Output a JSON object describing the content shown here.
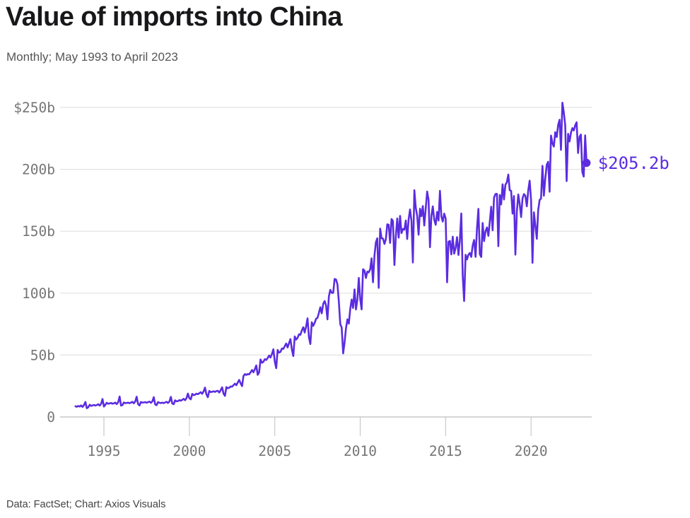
{
  "header": {
    "title": "Value of imports into China",
    "subtitle": "Monthly; May 1993 to April 2023"
  },
  "footer": {
    "credit": "Data: FactSet; Chart: Axios Visuals"
  },
  "chart_data": {
    "type": "line",
    "title": "Value of imports into China",
    "subtitle": "Monthly; May 1993 to April 2023",
    "unit": "USD billions per month",
    "x_start": "1993-05",
    "x_end": "2023-04",
    "ylim": [
      0,
      250
    ],
    "grid": "horizontal",
    "legend": "none",
    "line_color": "#5b2ce0",
    "grid_color": "#e2e2e2",
    "axis_color": "#c9c9c9",
    "tick_text_color": "#767676",
    "end_label": "$205.2b",
    "end_value": 205.2,
    "y_ticks": [
      {
        "v": 250,
        "label": "$250b"
      },
      {
        "v": 200,
        "label": "200b"
      },
      {
        "v": 150,
        "label": "150b"
      },
      {
        "v": 100,
        "label": "100b"
      },
      {
        "v": 50,
        "label": "50b"
      },
      {
        "v": 0,
        "label": "0"
      }
    ],
    "x_ticks": [
      {
        "v": 1995,
        "label": "1995"
      },
      {
        "v": 2000,
        "label": "2000"
      },
      {
        "v": 2005,
        "label": "2005"
      },
      {
        "v": 2010,
        "label": "2010"
      },
      {
        "v": 2015,
        "label": "2015"
      },
      {
        "v": 2020,
        "label": "2020"
      }
    ],
    "series": [
      {
        "name": "Value of imports into China",
        "first_year": 1993,
        "first_year_start_month": 5,
        "monthly_by_year": {
          "1993": [
            8.6,
            8.2,
            8.9,
            8.4,
            9.3,
            8.1,
            9.6,
            12.1
          ],
          "1994": [
            7.0,
            7.8,
            9.8,
            8.9,
            9.3,
            9.7,
            9.2,
            9.6,
            10.3,
            9.2,
            10.6,
            14.5
          ],
          "1995": [
            8.4,
            9.8,
            11.4,
            10.7,
            10.9,
            11.3,
            10.7,
            11.0,
            11.6,
            10.4,
            11.8,
            16.5
          ],
          "1996": [
            9.2,
            9.6,
            11.7,
            11.2,
            11.3,
            11.6,
            11.1,
            11.6,
            12.2,
            11.0,
            12.5,
            16.3
          ],
          "1997": [
            10.4,
            9.3,
            12.1,
            11.6,
            11.7,
            12.0,
            11.5,
            12.0,
            12.4,
            11.4,
            12.6,
            16.0
          ],
          "1998": [
            10.1,
            9.5,
            12.0,
            11.4,
            11.2,
            11.6,
            11.2,
            11.7,
            12.2,
            11.3,
            12.4,
            16.2
          ],
          "1999": [
            10.8,
            10.3,
            13.4,
            12.6,
            12.8,
            13.6,
            13.1,
            13.8,
            14.6,
            13.5,
            15.1,
            18.9
          ],
          "2000": [
            15.2,
            14.2,
            18.6,
            17.6,
            18.0,
            18.8,
            18.4,
            19.2,
            20.0,
            18.7,
            20.6,
            23.7
          ],
          "2001": [
            18.2,
            15.9,
            21.0,
            20.1,
            20.3,
            20.7,
            20.2,
            20.9,
            21.1,
            19.7,
            21.5,
            24.0
          ],
          "2002": [
            18.8,
            17.0,
            24.1,
            23.2,
            23.6,
            24.6,
            24.5,
            25.7,
            26.9,
            25.6,
            27.8,
            29.9
          ],
          "2003": [
            27.2,
            24.9,
            33.1,
            34.6,
            33.9,
            34.7,
            34.4,
            36.0,
            37.9,
            36.1,
            38.6,
            41.6
          ],
          "2004": [
            34.0,
            35.9,
            46.4,
            43.8,
            44.6,
            46.7,
            46.0,
            47.6,
            49.6,
            48.0,
            50.9,
            54.7
          ],
          "2005": [
            44.7,
            39.4,
            54.1,
            52.0,
            52.5,
            55.3,
            55.0,
            57.2,
            59.3,
            56.1,
            59.6,
            62.9
          ],
          "2006": [
            54.6,
            49.2,
            65.0,
            62.5,
            63.8,
            66.7,
            66.4,
            69.8,
            72.5,
            68.2,
            73.2,
            79.6
          ],
          "2007": [
            64.3,
            58.9,
            76.5,
            73.6,
            76.0,
            79.3,
            80.1,
            84.1,
            88.6,
            83.7,
            91.3,
            93.6
          ],
          "2008": [
            90.2,
            78.8,
            97.3,
            102.6,
            100.3,
            100.2,
            111.4,
            111.0,
            107.1,
            93.1,
            74.9,
            72.2
          ],
          "2009": [
            51.3,
            60.1,
            71.7,
            78.8,
            75.4,
            87.1,
            94.8,
            88.0,
            103.0,
            86.8,
            94.6,
            112.3
          ],
          "2010": [
            95.3,
            86.9,
            119.3,
            118.2,
            112.2,
            117.4,
            116.8,
            119.3,
            128.1,
            108.8,
            130.4,
            141.1
          ],
          "2011": [
            144.3,
            104.3,
            152.1,
            144.3,
            144.1,
            139.7,
            143.6,
            155.6,
            155.2,
            140.5,
            159.9,
            158.2
          ],
          "2012": [
            122.7,
            146.0,
            160.3,
            144.8,
            162.4,
            148.5,
            151.8,
            151.3,
            158.7,
            143.7,
            159.6,
            167.6
          ],
          "2013": [
            158.5,
            124.8,
            183.1,
            169.0,
            162.4,
            147.2,
            168.2,
            162.1,
            170.4,
            154.6,
            168.4,
            182.1
          ],
          "2014": [
            175.3,
            137.1,
            162.4,
            170.1,
            159.5,
            155.2,
            165.6,
            158.6,
            182.6,
            161.9,
            157.8,
            164.2
          ],
          "2015": [
            160.2,
            108.8,
            141.5,
            142.2,
            131.3,
            145.6,
            131.9,
            136.6,
            145.2,
            130.8,
            143.1,
            164.3
          ],
          "2016": [
            114.2,
            93.6,
            131.0,
            127.2,
            131.1,
            132.4,
            129.3,
            138.5,
            142.9,
            129.3,
            152.2,
            168.1
          ],
          "2017": [
            131.4,
            129.2,
            156.7,
            142.0,
            150.0,
            153.1,
            146.3,
            157.6,
            169.8,
            150.8,
            177.2,
            180.1
          ],
          "2018": [
            180.2,
            137.9,
            179.3,
            171.7,
            187.9,
            175.6,
            187.5,
            189.6,
            195.8,
            183.1,
            182.6,
            164.2
          ],
          "2019": [
            178.4,
            131.1,
            166.0,
            179.7,
            172.1,
            161.5,
            176.5,
            180.0,
            178.6,
            170.1,
            183.0,
            190.8
          ],
          "2020": [
            175.0,
            124.5,
            165.3,
            154.9,
            143.9,
            167.2,
            175.3,
            176.4,
            202.8,
            178.7,
            192.7,
            203.7
          ],
          "2021": [
            206.1,
            181.9,
            227.3,
            221.1,
            218.4,
            230.0,
            226.1,
            235.8,
            240.0,
            215.7,
            253.8,
            246.0
          ],
          "2022": [
            235.5,
            190.5,
            228.7,
            222.5,
            229.5,
            233.3,
            231.4,
            235.5,
            238.0,
            213.2,
            226.2,
            228.1
          ],
          "2023": [
            197.8,
            194.2,
            227.4,
            205.2
          ]
        }
      }
    ]
  }
}
